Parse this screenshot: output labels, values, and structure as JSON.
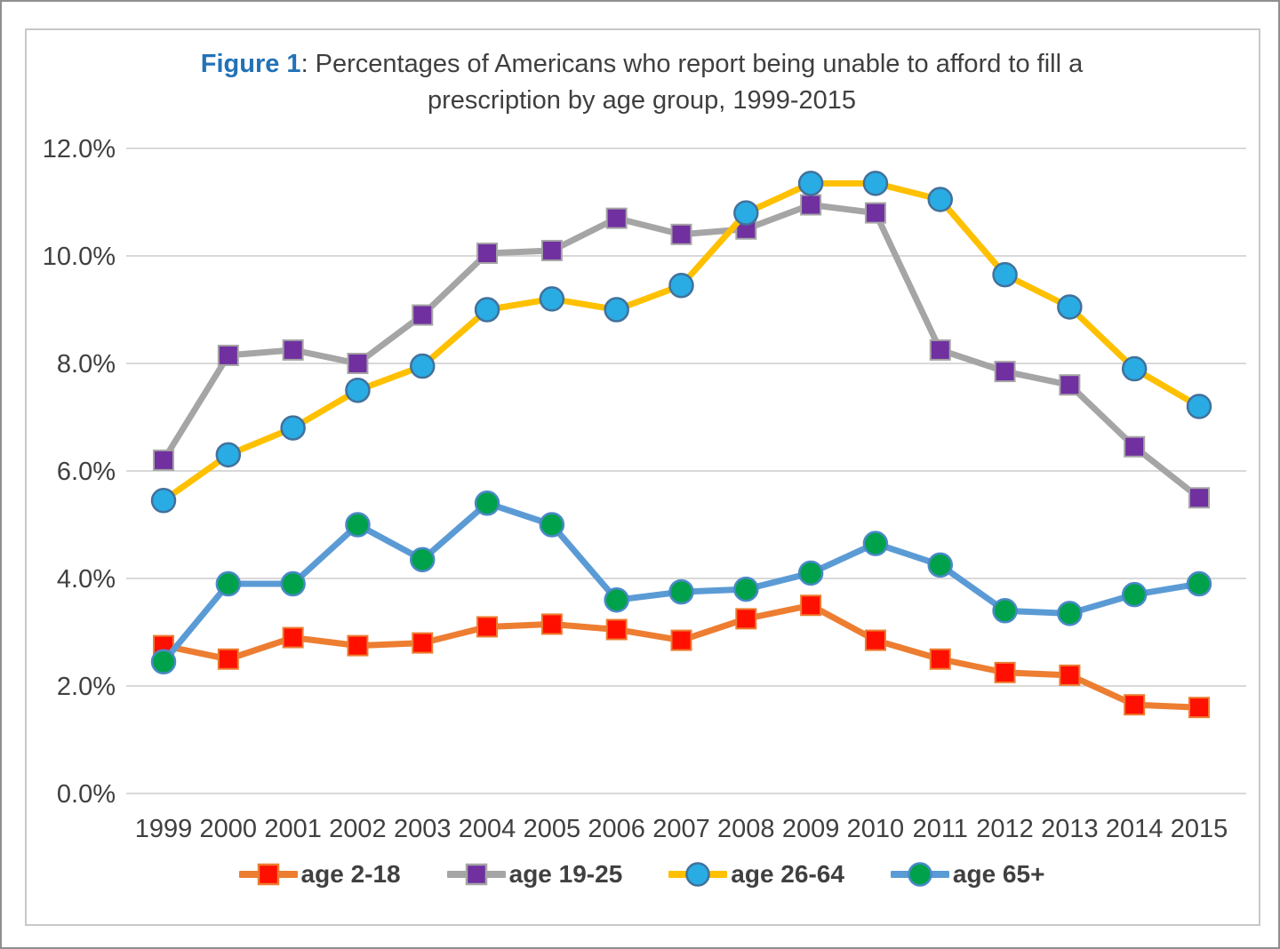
{
  "figure": {
    "title": {
      "prefix": "Figure 1",
      "line1_rest": ": Percentages of Americans who report being unable to afford to fill a",
      "line2": "prescription by age group, 1999-2015"
    },
    "colors": {
      "title_prefix": "#2272B8",
      "text": "#404040",
      "gridline": "#D9D9D9",
      "inner_border": "#C8C8C8",
      "outer_border": "#8F8F8F"
    }
  },
  "chart_data": {
    "type": "line",
    "title": "Figure 1: Percentages of Americans who report being unable to afford to fill a prescription by age group, 1999-2015",
    "xlabel": "",
    "ylabel": "",
    "x": [
      1999,
      2000,
      2001,
      2002,
      2003,
      2004,
      2005,
      2006,
      2007,
      2008,
      2009,
      2010,
      2011,
      2012,
      2013,
      2014,
      2015
    ],
    "x_tick_labels": [
      "1999",
      "2000",
      "2001",
      "2002",
      "2003",
      "2004",
      "2005",
      "2006",
      "2007",
      "2008",
      "2009",
      "2010",
      "2011",
      "2012",
      "2013",
      "2014",
      "2015"
    ],
    "ylim": [
      0,
      12
    ],
    "y_ticks": [
      0,
      2,
      4,
      6,
      8,
      10,
      12
    ],
    "y_tick_labels": [
      "0.0%",
      "2.0%",
      "4.0%",
      "6.0%",
      "8.0%",
      "10.0%",
      "12.0%"
    ],
    "grid": "horizontal",
    "legend_position": "bottom",
    "series": [
      {
        "name": "age 2-18",
        "line_color": "#ED7D31",
        "marker": "square",
        "marker_fill": "#FF0F00",
        "marker_edge": "#ED7D31",
        "values": [
          2.75,
          2.5,
          2.9,
          2.75,
          2.8,
          3.1,
          3.15,
          3.05,
          2.85,
          3.25,
          3.5,
          2.85,
          2.5,
          2.25,
          2.2,
          1.65,
          1.6
        ]
      },
      {
        "name": "age 19-25",
        "line_color": "#A5A5A5",
        "marker": "square",
        "marker_fill": "#7030A0",
        "marker_edge": "#A5A5A5",
        "values": [
          6.2,
          8.15,
          8.25,
          8.0,
          8.9,
          10.05,
          10.1,
          10.7,
          10.4,
          10.5,
          10.95,
          10.8,
          8.25,
          7.85,
          7.6,
          6.45,
          5.5
        ]
      },
      {
        "name": "age 26-64",
        "line_color": "#FFC000",
        "marker": "circle",
        "marker_fill": "#29ACE3",
        "marker_edge": "#41719C",
        "values": [
          5.45,
          6.3,
          6.8,
          7.5,
          7.95,
          9.0,
          9.2,
          9.0,
          9.45,
          10.8,
          11.35,
          11.35,
          11.05,
          9.65,
          9.05,
          7.9,
          7.2
        ]
      },
      {
        "name": "age 65+",
        "line_color": "#5B9BD5",
        "marker": "circle",
        "marker_fill": "#00A14B",
        "marker_edge": "#4A89C8",
        "values": [
          2.45,
          3.9,
          3.9,
          5.0,
          4.35,
          5.4,
          5.0,
          3.6,
          3.75,
          3.8,
          4.1,
          4.65,
          4.25,
          3.4,
          3.35,
          3.7,
          3.9
        ]
      }
    ]
  }
}
